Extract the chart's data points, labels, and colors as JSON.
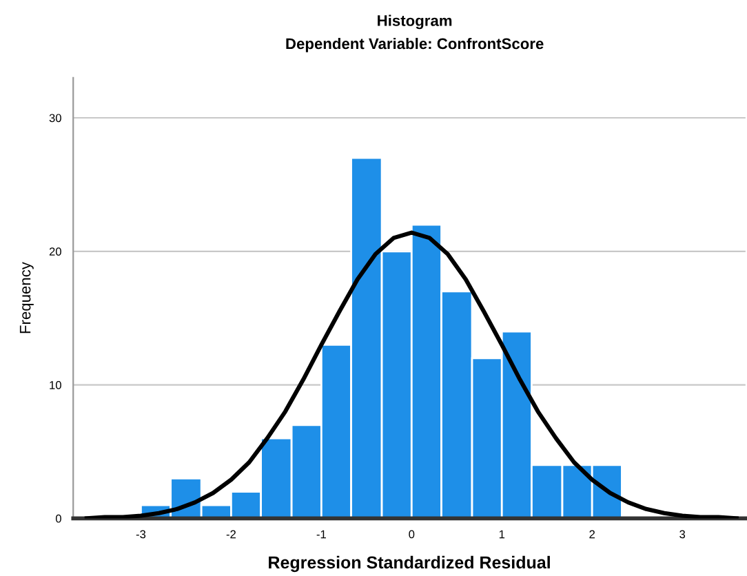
{
  "chart_data": {
    "type": "histogram",
    "title": "Histogram",
    "subtitle": "Dependent Variable: ConfrontScore",
    "xlabel": "Regression Standardized Residual",
    "ylabel": "Frequency",
    "bins": [
      -3,
      -2.67,
      -2.33,
      -2,
      -1.67,
      -1.33,
      -1,
      -0.67,
      -0.33,
      0,
      0.33,
      0.67,
      1,
      1.33,
      1.67,
      2,
      2.33
    ],
    "values": [
      1,
      3,
      1,
      2,
      6,
      7,
      13,
      27,
      20,
      22,
      17,
      12,
      14,
      4,
      4,
      4
    ],
    "color": "#1e8fe8",
    "series": [
      {
        "type": "line",
        "color": "#000000",
        "x": [
          -3.6,
          -3.4,
          -3.2,
          -3.0,
          -2.8,
          -2.6,
          -2.4,
          -2.2,
          -2.0,
          -1.8,
          -1.6,
          -1.4,
          -1.2,
          -1.0,
          -0.8,
          -0.6,
          -0.4,
          -0.2,
          0,
          0.2,
          0.4,
          0.6,
          0.8,
          1.0,
          1.2,
          1.4,
          1.6,
          1.8,
          2.0,
          2.2,
          2.4,
          2.6,
          2.8,
          3.0,
          3.2,
          3.4,
          3.6
        ],
        "values": [
          0.0,
          0.1,
          0.1,
          0.2,
          0.4,
          0.7,
          1.2,
          1.9,
          2.9,
          4.2,
          6.0,
          8.0,
          10.4,
          13.0,
          15.5,
          17.9,
          19.8,
          21.0,
          21.4,
          21.0,
          19.8,
          17.9,
          15.5,
          13.0,
          10.4,
          8.0,
          6.0,
          4.2,
          2.9,
          1.9,
          1.2,
          0.7,
          0.4,
          0.2,
          0.1,
          0.1,
          0.0
        ]
      }
    ],
    "xlim": [
      -3.75,
      3.7
    ],
    "ylim": [
      0,
      33
    ],
    "xticks": [
      -3,
      -2,
      -1,
      0,
      1,
      2,
      3
    ],
    "yticks": [
      0,
      10,
      20,
      30
    ],
    "grid": "y"
  }
}
